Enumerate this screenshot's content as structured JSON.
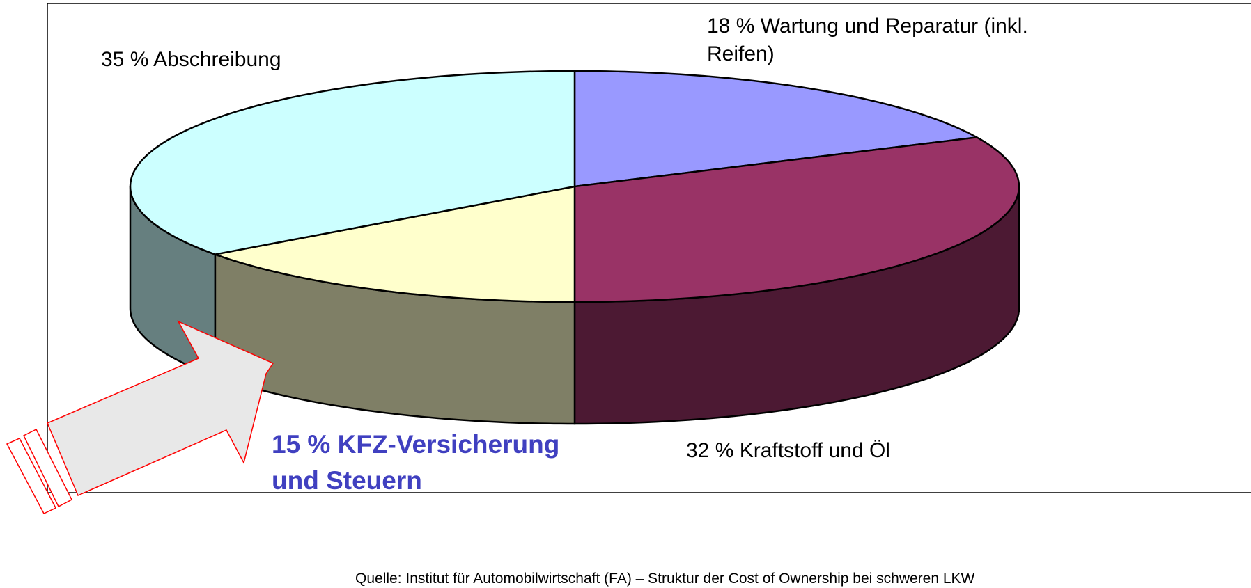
{
  "chart_data": {
    "type": "pie3d",
    "categories": [
      "Wartung und Reparatur (inkl. Reifen)",
      "Kraftstoff und Öl",
      "KFZ-Versicherung und Steuern",
      "Abschreibung"
    ],
    "values": [
      18,
      32,
      15,
      35
    ],
    "value_labels": [
      "18 %",
      "32 %",
      "15 %",
      "35 %"
    ],
    "colors": [
      "#9999ff",
      "#993366",
      "#ffffcc",
      "#ccffff"
    ],
    "source": "Quelle: Institut für Automobilwirtschaft (FA) – Struktur der Cost of Ownership bei schweren LKW"
  }
}
